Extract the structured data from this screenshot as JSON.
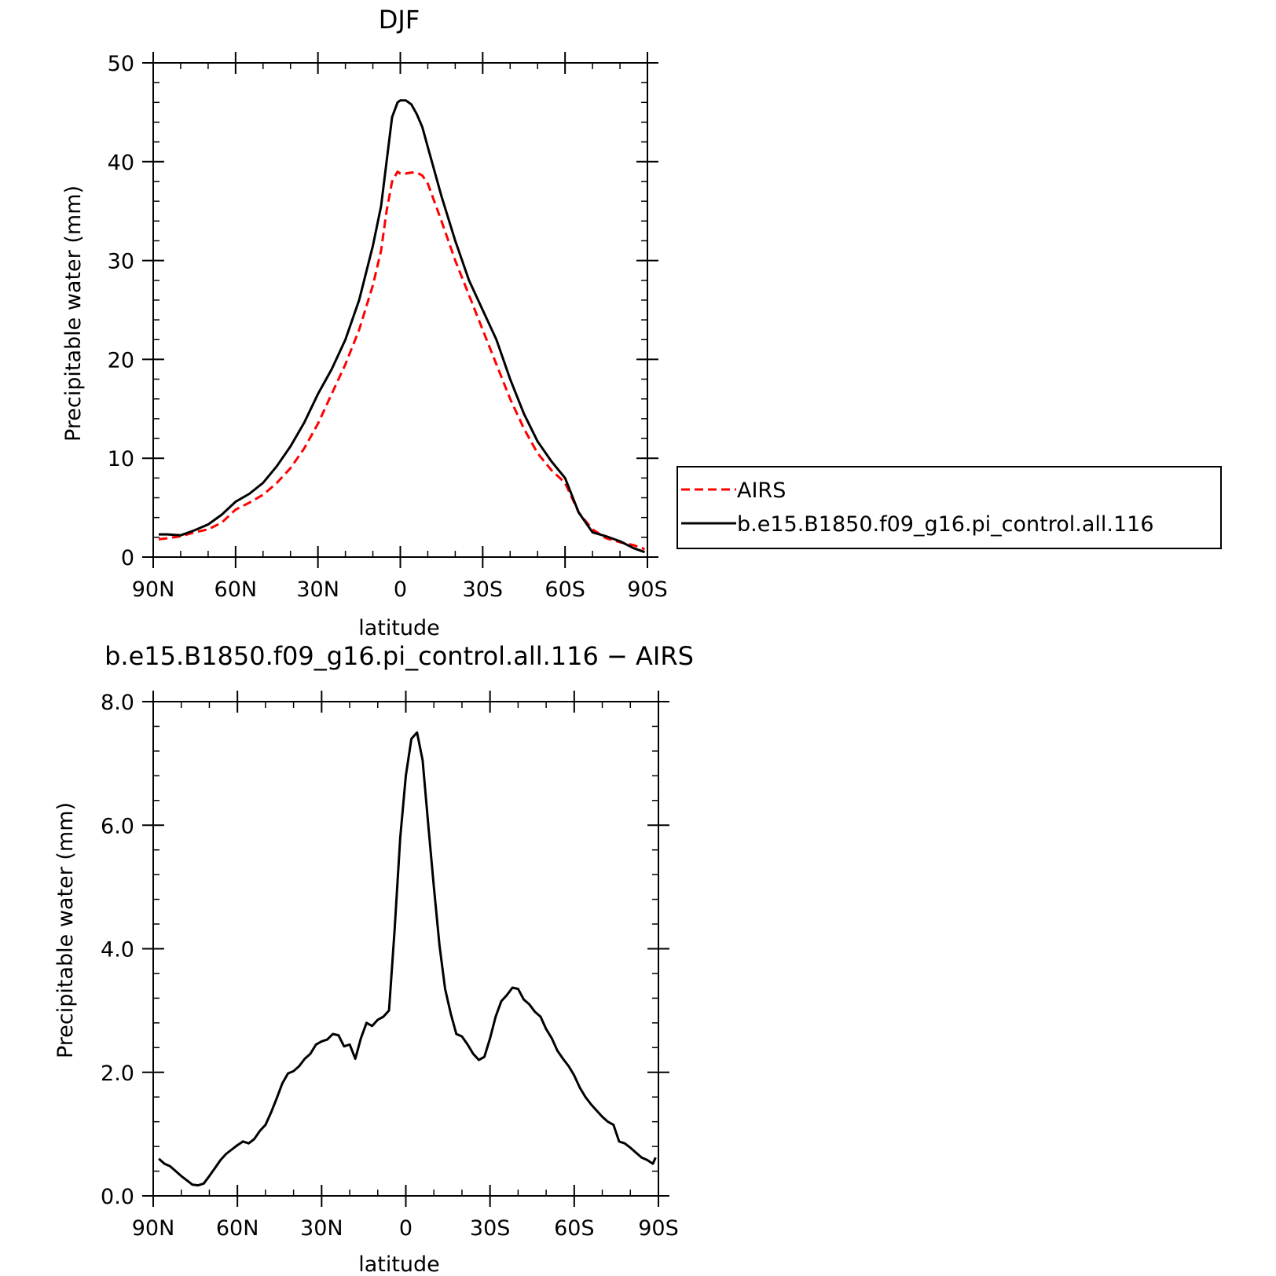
{
  "chart_data": [
    {
      "type": "line",
      "title": "DJF",
      "xlabel": "latitude",
      "ylabel": "Precipitable water (mm)",
      "xlim": [
        90,
        -90
      ],
      "ylim": [
        0,
        50
      ],
      "yticks": [
        0,
        10,
        20,
        30,
        40,
        50
      ],
      "ytick_labels": [
        "0",
        "10",
        "20",
        "30",
        "40",
        "50"
      ],
      "xticks": [
        90,
        60,
        30,
        0,
        -30,
        -60,
        -90
      ],
      "xtick_labels": [
        "90N",
        "60N",
        "30N",
        "0",
        "30S",
        "60S",
        "90S"
      ],
      "legend": {
        "placement": "right-outside"
      },
      "series": [
        {
          "name": "AIRS",
          "color": "#ff0000",
          "style": "dashed",
          "x": [
            88,
            85,
            80,
            75,
            70,
            65,
            60,
            55,
            50,
            45,
            40,
            35,
            30,
            25,
            20,
            15,
            10,
            7,
            5,
            3,
            1,
            0,
            -2,
            -4,
            -6,
            -8,
            -10,
            -15,
            -20,
            -25,
            -30,
            -35,
            -40,
            -45,
            -50,
            -55,
            -60,
            -65,
            -70,
            -75,
            -80,
            -85,
            -89
          ],
          "values": [
            1.8,
            1.9,
            2.1,
            2.5,
            2.8,
            3.5,
            4.8,
            5.5,
            6.3,
            7.5,
            9.0,
            11.0,
            13.5,
            16.5,
            19.5,
            23.0,
            27.5,
            31.0,
            35.0,
            38.0,
            39.0,
            38.8,
            38.8,
            38.9,
            38.9,
            38.6,
            37.8,
            34.0,
            30.0,
            26.5,
            23.0,
            19.5,
            16.0,
            13.0,
            10.5,
            8.8,
            7.5,
            4.5,
            2.8,
            1.9,
            1.5,
            1.2,
            0.8
          ]
        },
        {
          "name": "b.e15.B1850.f09_g16.pi_control.all.116",
          "color": "#000000",
          "style": "solid",
          "x": [
            88,
            85,
            80,
            75,
            70,
            65,
            60,
            55,
            50,
            45,
            40,
            35,
            30,
            25,
            20,
            15,
            10,
            7,
            5,
            3,
            1,
            0,
            -2,
            -4,
            -6,
            -8,
            -10,
            -15,
            -20,
            -25,
            -30,
            -35,
            -40,
            -45,
            -50,
            -55,
            -60,
            -65,
            -70,
            -75,
            -80,
            -85,
            -89
          ],
          "values": [
            2.3,
            2.3,
            2.2,
            2.7,
            3.3,
            4.3,
            5.6,
            6.4,
            7.5,
            9.2,
            11.2,
            13.6,
            16.5,
            19.0,
            22.0,
            26.0,
            31.5,
            35.5,
            40.0,
            44.5,
            46.0,
            46.2,
            46.2,
            45.8,
            44.8,
            43.5,
            41.5,
            36.5,
            32.0,
            28.0,
            25.0,
            22.0,
            18.0,
            14.5,
            11.7,
            9.7,
            8.0,
            4.5,
            2.5,
            2.1,
            1.6,
            0.9,
            0.5
          ]
        }
      ]
    },
    {
      "type": "line",
      "title": "b.e15.B1850.f09_g16.pi_control.all.116 − AIRS",
      "xlabel": "latitude",
      "ylabel": "Precipitable water (mm)",
      "xlim": [
        90,
        -90
      ],
      "ylim": [
        0,
        8
      ],
      "yticks": [
        0,
        2,
        4,
        6,
        8
      ],
      "ytick_labels": [
        "0.0",
        "2.0",
        "4.0",
        "6.0",
        "8.0"
      ],
      "xticks": [
        90,
        60,
        30,
        0,
        -30,
        -60,
        -90
      ],
      "xtick_labels": [
        "90N",
        "60N",
        "30N",
        "0",
        "30S",
        "60S",
        "90S"
      ],
      "series": [
        {
          "color": "#000000",
          "style": "solid",
          "x": [
            88,
            86,
            84,
            82,
            80,
            78,
            76,
            74,
            72,
            70,
            68,
            66,
            64,
            62,
            60,
            58,
            56,
            54,
            52,
            50,
            48,
            46,
            44,
            42,
            40,
            38,
            36,
            34,
            32,
            30,
            28,
            26,
            24,
            22,
            20,
            18,
            16,
            14,
            12,
            10,
            8,
            6,
            4,
            2,
            0,
            -2,
            -4,
            -6,
            -8,
            -10,
            -12,
            -14,
            -16,
            -18,
            -20,
            -22,
            -24,
            -26,
            -28,
            -30,
            -32,
            -34,
            -36,
            -38,
            -40,
            -42,
            -44,
            -46,
            -48,
            -50,
            -52,
            -54,
            -56,
            -58,
            -60,
            -62,
            -64,
            -66,
            -68,
            -70,
            -72,
            -74,
            -76,
            -78,
            -80,
            -82,
            -84,
            -86,
            -88,
            -89
          ],
          "values": [
            0.6,
            0.52,
            0.48,
            0.4,
            0.32,
            0.25,
            0.18,
            0.17,
            0.2,
            0.32,
            0.45,
            0.58,
            0.68,
            0.75,
            0.82,
            0.88,
            0.85,
            0.92,
            1.05,
            1.15,
            1.35,
            1.58,
            1.82,
            1.98,
            2.02,
            2.1,
            2.22,
            2.3,
            2.45,
            2.5,
            2.53,
            2.62,
            2.6,
            2.42,
            2.45,
            2.22,
            2.55,
            2.8,
            2.75,
            2.85,
            2.9,
            3.0,
            4.3,
            5.8,
            6.8,
            7.4,
            7.5,
            7.05,
            6.0,
            5.0,
            4.05,
            3.35,
            2.95,
            2.62,
            2.58,
            2.45,
            2.3,
            2.2,
            2.25,
            2.55,
            2.9,
            3.15,
            3.25,
            3.37,
            3.35,
            3.18,
            3.1,
            2.98,
            2.9,
            2.7,
            2.55,
            2.35,
            2.22,
            2.1,
            1.95,
            1.75,
            1.6,
            1.48,
            1.38,
            1.28,
            1.2,
            1.15,
            0.88,
            0.85,
            0.78,
            0.7,
            0.62,
            0.58,
            0.52,
            0.62
          ],
          "values_tail": []
        }
      ]
    }
  ]
}
